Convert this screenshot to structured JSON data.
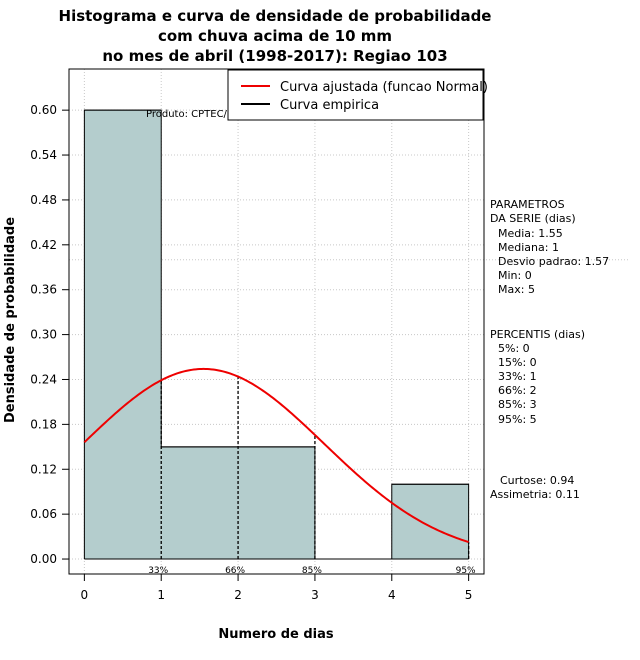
{
  "chart_data": {
    "type": "histogram",
    "title_lines": [
      "Histograma e curva de densidade de probabilidade",
      "com chuva acima de 10 mm",
      "no mes de abril (1998-2017): Regiao 103"
    ],
    "xlabel": "Numero de dias",
    "ylabel": "Densidade de probabilidade",
    "xlim": [
      -0.2,
      5.2
    ],
    "ylim": [
      -0.02,
      0.655
    ],
    "x_ticks": [
      0,
      1,
      2,
      3,
      4,
      5
    ],
    "y_ticks": [
      "0.00",
      "0.06",
      "0.12",
      "0.18",
      "0.24",
      "0.30",
      "0.36",
      "0.42",
      "0.48",
      "0.54",
      "0.60"
    ],
    "bars": [
      {
        "x0": 0,
        "x1": 1,
        "value": 0.6
      },
      {
        "x0": 1,
        "x1": 2,
        "value": 0.15
      },
      {
        "x0": 2,
        "x1": 3,
        "value": 0.15
      },
      {
        "x0": 3,
        "x1": 4,
        "value": 0.0
      },
      {
        "x0": 4,
        "x1": 5,
        "value": 0.1
      }
    ],
    "bar_color": "#b4cdcd",
    "fitted_curve": {
      "name": "Curva ajustada (funcao Normal)",
      "mean": 1.55,
      "sd": 1.57,
      "color": "#ee0000"
    },
    "empirical_curve": {
      "name": "Curva empirica",
      "color": "#000000"
    },
    "percentile_lines": [
      {
        "x": 1,
        "label": "33%"
      },
      {
        "x": 2,
        "label": "66%"
      },
      {
        "x": 3,
        "label": "85%"
      },
      {
        "x": 5,
        "label": "95%"
      }
    ],
    "grid": true,
    "legend_position": "top-right",
    "annotation": "Produto: CPTEC/INPE"
  },
  "side_panel": {
    "params_title_1": "PARAMETROS",
    "params_title_2": "DA SERIE (dias)",
    "params": [
      "Media: 1.55",
      "Mediana: 1",
      "Desvio padrao: 1.57",
      "Min: 0",
      "Max: 5"
    ],
    "percentis_title": "PERCENTIS (dias)",
    "percentis": [
      "5%: 0",
      "15%: 0",
      "33%: 1",
      "66%: 2",
      "85%: 3",
      "95%: 5"
    ],
    "curtose": "Curtose: 0.94",
    "assimetria": "Assimetria: 0.11"
  }
}
